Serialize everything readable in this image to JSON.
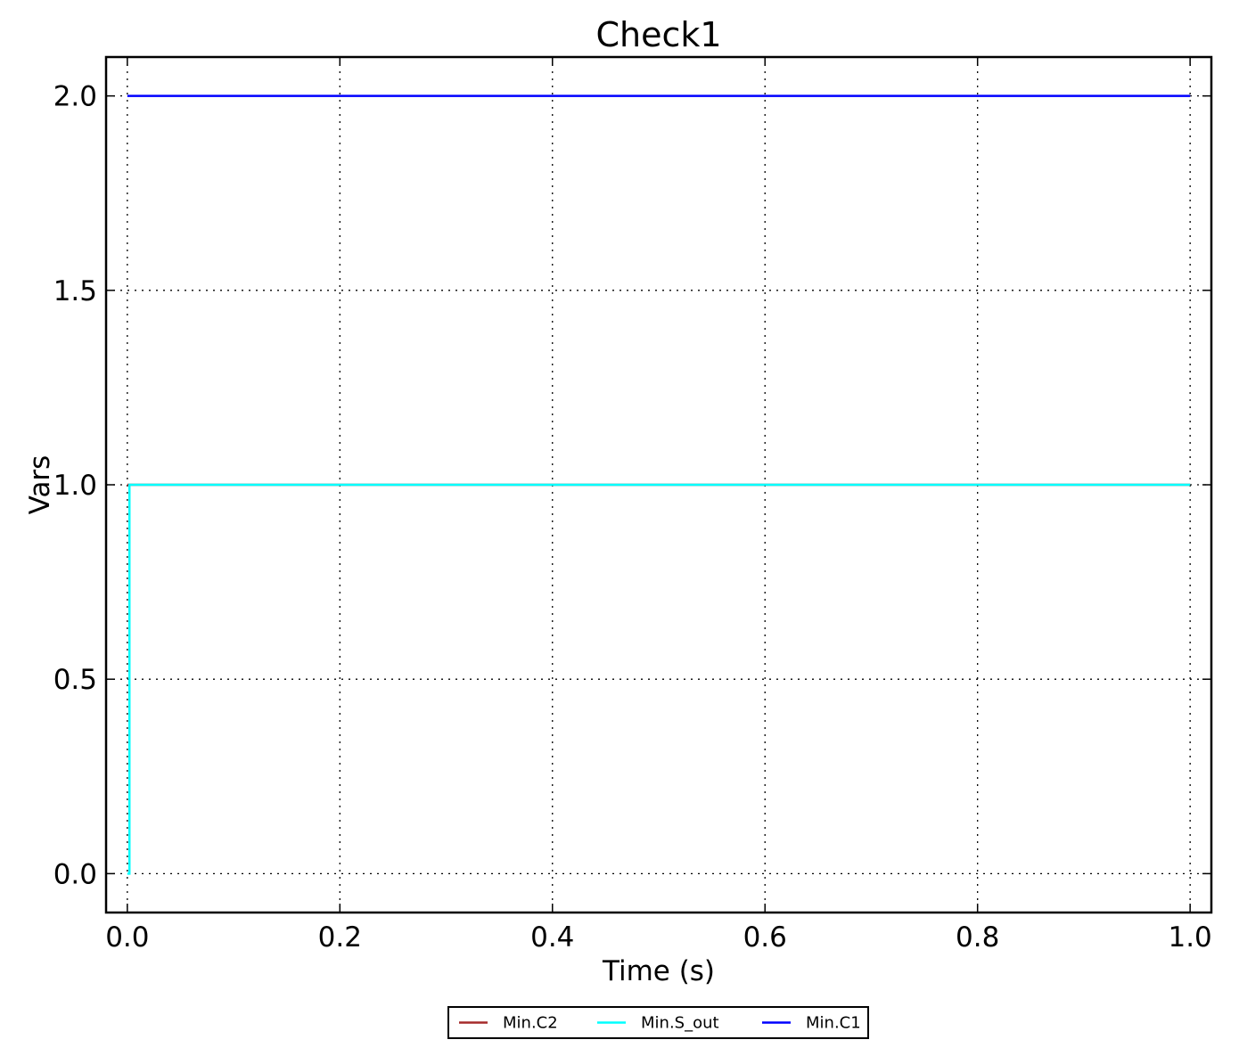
{
  "chart_data": {
    "type": "line",
    "title": "Check1",
    "xlabel": "Time (s)",
    "ylabel": "Vars",
    "xlim": [
      -0.02,
      1.02
    ],
    "ylim": [
      -0.1,
      2.1
    ],
    "xticks": [
      0.0,
      0.2,
      0.4,
      0.6,
      0.8,
      1.0
    ],
    "xtick_labels": [
      "0.0",
      "0.2",
      "0.4",
      "0.6",
      "0.8",
      "1.0"
    ],
    "yticks": [
      0.0,
      0.5,
      1.0,
      1.5,
      2.0
    ],
    "ytick_labels": [
      "0.0",
      "0.5",
      "1.0",
      "1.5",
      "2.0"
    ],
    "grid": true,
    "legend_position": "bottom-center",
    "series": [
      {
        "name": "Min.C2",
        "color": "#a52a2a",
        "x": [
          0.0,
          1.0
        ],
        "y": [
          1.0,
          1.0
        ]
      },
      {
        "name": "Min.S_out",
        "color": "#00ffff",
        "x": [
          0.0,
          0.002,
          0.002,
          1.0
        ],
        "y": [
          0.0,
          0.0,
          1.0,
          1.0
        ]
      },
      {
        "name": "Min.C1",
        "color": "#0000ff",
        "x": [
          0.0,
          1.0
        ],
        "y": [
          2.0,
          2.0
        ]
      }
    ]
  }
}
